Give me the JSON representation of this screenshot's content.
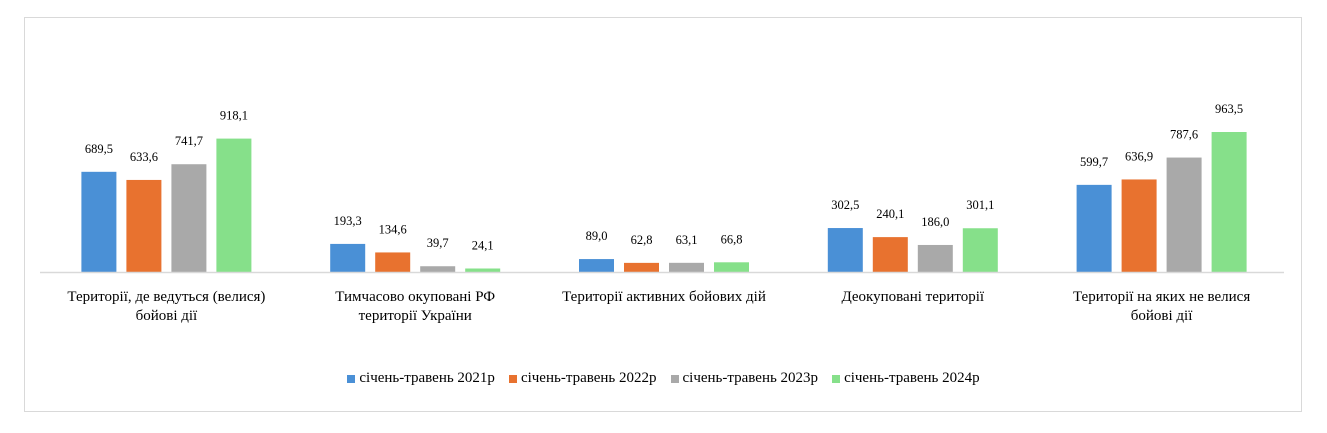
{
  "chart_data": {
    "type": "bar",
    "title": "",
    "xlabel": "",
    "ylabel": "",
    "ylim": [
      0,
      1000
    ],
    "grid": false,
    "legend_position": "bottom",
    "categories": [
      [
        "Території, де ведуться (велися)",
        "бойові дії"
      ],
      [
        "Тимчасово окуповані РФ",
        "території України"
      ],
      [
        "Території активних бойових дій"
      ],
      [
        "Деокуповані території"
      ],
      [
        "Території на яких не велися",
        "бойові дії"
      ]
    ],
    "series": [
      {
        "name": "січень-травень 2021р",
        "color": "#4a90d6",
        "values": [
          689.5,
          193.3,
          89.0,
          302.5,
          599.7
        ],
        "labels": [
          "689,5",
          "193,3",
          "89,0",
          "302,5",
          "599,7"
        ]
      },
      {
        "name": "січень-травень 2022р",
        "color": "#e8722f",
        "values": [
          633.6,
          134.6,
          62.8,
          240.1,
          636.9
        ],
        "labels": [
          "633,6",
          "134,6",
          "62,8",
          "240,1",
          "636,9"
        ]
      },
      {
        "name": "січень-травень 2023р",
        "color": "#a9a9a9",
        "values": [
          741.7,
          39.7,
          63.1,
          186.0,
          787.6
        ],
        "labels": [
          "741,7",
          "39,7",
          "63,1",
          "186,0",
          "787,6"
        ]
      },
      {
        "name": "січень-травень 2024р",
        "color": "#86e08a",
        "values": [
          918.1,
          24.1,
          66.8,
          301.1,
          963.5
        ],
        "labels": [
          "918,1",
          "24,1",
          "66,8",
          "301,1",
          "963,5"
        ]
      }
    ]
  }
}
